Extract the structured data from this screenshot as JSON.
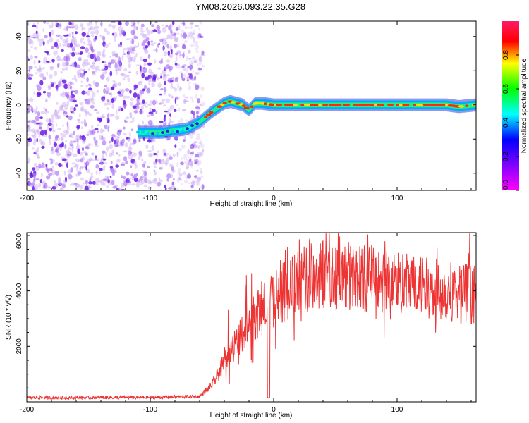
{
  "title": "YM08.2026.093.22.35.G28",
  "chart_data": [
    {
      "type": "heatmap",
      "xlabel": "Height of straight line (km)",
      "ylabel": "Frequency (Hz)",
      "xlim": [
        -200,
        164
      ],
      "ylim": [
        -50,
        49
      ],
      "xticks": [
        -200,
        -100,
        0,
        100
      ],
      "yticks": [
        -40,
        -20,
        0,
        20,
        40
      ],
      "noise_region_x": [
        -200,
        -57
      ],
      "ridge": {
        "x": [
          -110,
          -100,
          -90,
          -80,
          -70,
          -60,
          -50,
          -40,
          -35,
          -30,
          -25,
          -20,
          -15,
          -10,
          0,
          20,
          40,
          60,
          80,
          100,
          120,
          140,
          150,
          164
        ],
        "y": [
          -16,
          -16,
          -16,
          -15,
          -14,
          -10,
          -4,
          1,
          2,
          1,
          0,
          -3,
          1,
          1,
          0,
          0,
          0,
          0,
          0,
          0,
          0,
          0,
          -1,
          0
        ],
        "start_x": -110
      },
      "colorbar": {
        "label": "Normalized spectral amplitude",
        "range": [
          0,
          1
        ],
        "ticks": [
          "0.0",
          "0.2",
          "0.4",
          "0.6",
          "0.8"
        ]
      },
      "colors": [
        "#ff00ff",
        "#8000ff",
        "#0000ff",
        "#00ffff",
        "#00ff00",
        "#ffff00",
        "#ff0000"
      ]
    },
    {
      "type": "line",
      "xlabel": "Height of straight line (km)",
      "ylabel": "SNR (10 * v/v)",
      "xlim": [
        -200,
        164
      ],
      "ylim": [
        0,
        6100
      ],
      "xticks": [
        -200,
        -100,
        0,
        100
      ],
      "yticks": [
        2000,
        4000,
        6000
      ],
      "color": "#ee3333",
      "envelope": {
        "x": [
          -200,
          -100,
          -60,
          -50,
          -40,
          -30,
          -20,
          -10,
          0,
          10,
          20,
          30,
          40,
          60,
          80,
          100,
          120,
          140,
          164
        ],
        "y": [
          150,
          160,
          200,
          600,
          1400,
          2200,
          2800,
          3300,
          3700,
          4000,
          4300,
          4500,
          4600,
          4550,
          4450,
          4300,
          4100,
          4000,
          3900
        ]
      }
    }
  ]
}
